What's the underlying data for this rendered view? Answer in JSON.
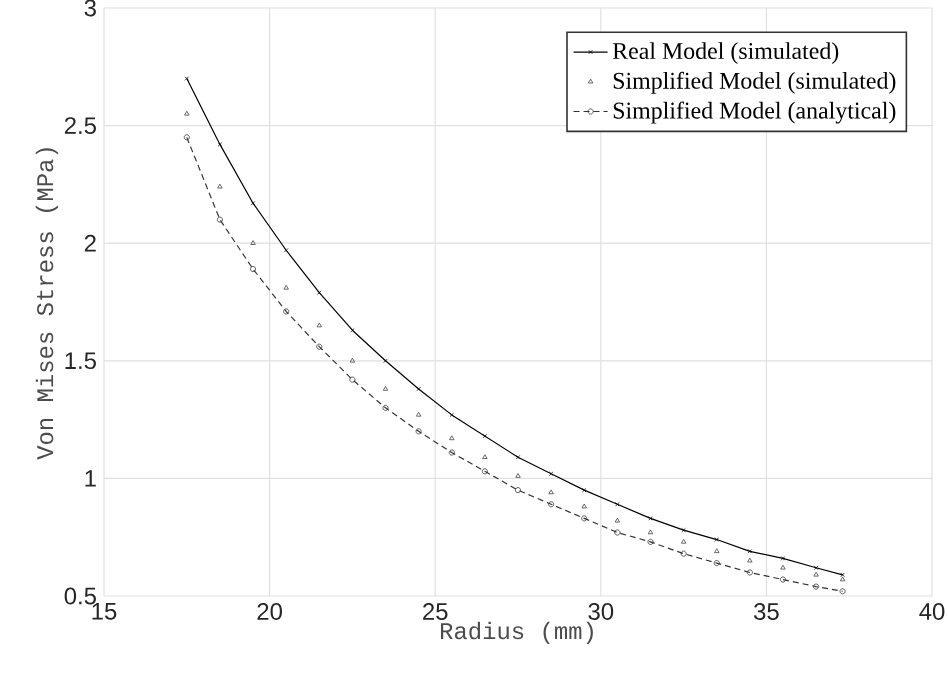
{
  "chart_data": {
    "type": "line",
    "xlabel": "Radius (mm)",
    "ylabel": "Von Mises Stress (MPa)",
    "xlim": [
      15,
      40
    ],
    "xticks": [
      15,
      20,
      25,
      30,
      35,
      40
    ],
    "ylim": [
      0.5,
      3
    ],
    "yticks": [
      0.5,
      1,
      1.5,
      2,
      2.5,
      3
    ],
    "grid": true,
    "legend": "top right",
    "x": [
      17.5,
      18.5,
      19.5,
      20.5,
      21.5,
      22.5,
      23.5,
      24.5,
      25.5,
      26.5,
      27.5,
      28.5,
      29.5,
      30.5,
      31.5,
      32.5,
      33.5,
      34.5,
      35.5,
      36.5,
      37.3
    ],
    "series": [
      {
        "name": "Real Model (simulated)",
        "color": "#000000",
        "marker": "cross",
        "line_style": "solid",
        "values": [
          2.7,
          2.42,
          2.17,
          1.97,
          1.79,
          1.63,
          1.5,
          1.38,
          1.27,
          1.18,
          1.09,
          1.02,
          0.95,
          0.89,
          0.83,
          0.78,
          0.74,
          0.69,
          0.66,
          0.62,
          0.59
        ]
      },
      {
        "name": "Simplified Model (simulated)",
        "type": "scatter",
        "color": "#444444",
        "marker": "triangle",
        "values": [
          2.55,
          2.24,
          2.0,
          1.81,
          1.65,
          1.5,
          1.38,
          1.27,
          1.17,
          1.09,
          1.01,
          0.94,
          0.88,
          0.82,
          0.77,
          0.73,
          0.69,
          0.65,
          0.62,
          0.59,
          0.57
        ]
      },
      {
        "name": "Simplified Model (analytical)",
        "color": "#333333",
        "marker": "circle",
        "line_style": "dashed",
        "values": [
          2.45,
          2.1,
          1.89,
          1.71,
          1.56,
          1.42,
          1.3,
          1.2,
          1.11,
          1.03,
          0.95,
          0.89,
          0.83,
          0.77,
          0.73,
          0.68,
          0.64,
          0.6,
          0.57,
          0.54,
          0.52
        ]
      }
    ]
  }
}
